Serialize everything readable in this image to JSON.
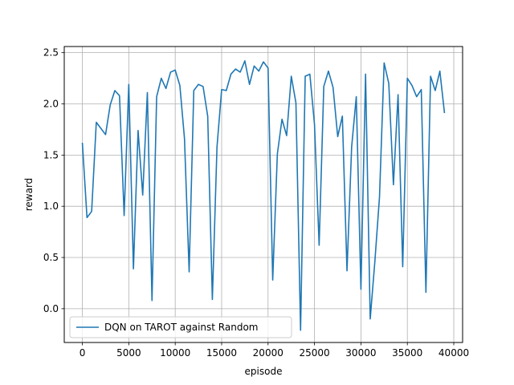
{
  "chart_data": {
    "type": "line",
    "title": "",
    "xlabel": "episode",
    "ylabel": "reward",
    "xlim": [
      -1950,
      40950
    ],
    "ylim": [
      -0.33,
      2.56
    ],
    "xticks": [
      0,
      5000,
      10000,
      15000,
      20000,
      25000,
      30000,
      35000,
      40000
    ],
    "xtick_labels": [
      "0",
      "5000",
      "10000",
      "15000",
      "20000",
      "25000",
      "30000",
      "35000",
      "40000"
    ],
    "yticks": [
      0.0,
      0.5,
      1.0,
      1.5,
      2.0,
      2.5
    ],
    "ytick_labels": [
      "0.0",
      "0.5",
      "1.0",
      "1.5",
      "2.0",
      "2.5"
    ],
    "grid": true,
    "legend_position": "lower-left",
    "series": [
      {
        "name": "DQN on TAROT against Random",
        "color": "#1f77b4",
        "x": [
          0,
          500,
          1000,
          1500,
          2000,
          2500,
          3000,
          3500,
          4000,
          4500,
          5000,
          5500,
          6000,
          6500,
          7000,
          7500,
          8000,
          8500,
          9000,
          9500,
          10000,
          10500,
          11000,
          11500,
          12000,
          12500,
          13000,
          13500,
          14000,
          14500,
          15000,
          15500,
          16000,
          16500,
          17000,
          17500,
          18000,
          18500,
          19000,
          19500,
          20000,
          20500,
          21000,
          21500,
          22000,
          22500,
          23000,
          23500,
          24000,
          24500,
          25000,
          25500,
          26000,
          26500,
          27000,
          27500,
          28000,
          28500,
          29000,
          29500,
          30000,
          30500,
          31000,
          31500,
          32000,
          32500,
          33000,
          33500,
          34000,
          34500,
          35000,
          35500,
          36000,
          36500,
          37000,
          37500,
          38000,
          38500,
          39000
        ],
        "y": [
          1.62,
          0.89,
          0.95,
          1.82,
          1.76,
          1.7,
          1.99,
          2.13,
          2.08,
          0.91,
          2.19,
          0.39,
          1.74,
          1.11,
          2.11,
          0.08,
          2.07,
          2.25,
          2.15,
          2.31,
          2.33,
          2.18,
          1.66,
          0.36,
          2.13,
          2.19,
          2.17,
          1.88,
          0.09,
          1.58,
          2.14,
          2.13,
          2.29,
          2.34,
          2.31,
          2.42,
          2.19,
          2.37,
          2.32,
          2.41,
          2.35,
          0.28,
          1.51,
          1.85,
          1.69,
          2.27,
          2.01,
          -0.21,
          2.27,
          2.29,
          1.8,
          0.62,
          2.17,
          2.32,
          2.16,
          1.68,
          1.88,
          0.37,
          1.58,
          2.07,
          0.19,
          2.29,
          -0.1,
          0.46,
          1.09,
          2.4,
          2.2,
          1.21,
          2.09,
          0.41,
          2.25,
          2.18,
          2.07,
          2.14,
          0.16,
          2.27,
          2.13,
          2.32,
          1.91
        ]
      }
    ]
  }
}
